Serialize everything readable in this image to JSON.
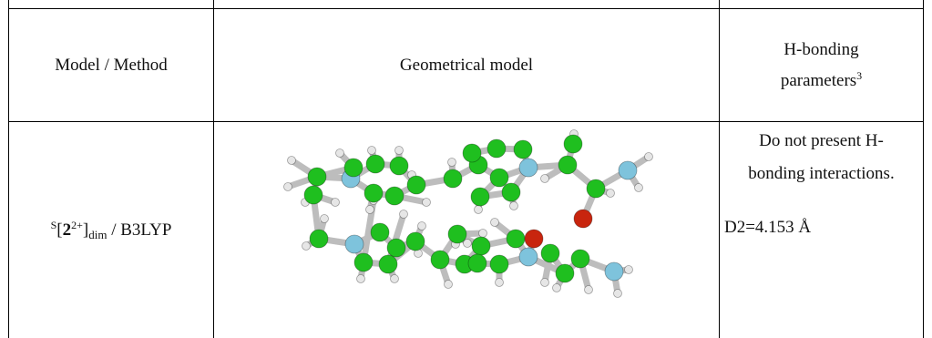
{
  "header": {
    "col1": "Model / Method",
    "col2": "Geometrical model",
    "col3_line1": "H-bonding",
    "col3_line2": "parameters",
    "col3_sup": "3"
  },
  "row": {
    "model_pre_sup": "S",
    "model_bracket_open": "[",
    "model_bold": "2",
    "model_sup": "2+",
    "model_bracket_close": "]",
    "model_sub": "dim",
    "model_method": " / B3LYP",
    "hb_line1": "Do not present H-",
    "hb_line2": "bonding interactions.",
    "distance": "D2=4.153 Å"
  },
  "atom_colors": {
    "carbon": "#1fbf1f",
    "nitrogen": "#7ec3dc",
    "oxygen": "#c8250e",
    "hydrogen": "#e6e6e6",
    "bond": "#bdbdbd"
  }
}
